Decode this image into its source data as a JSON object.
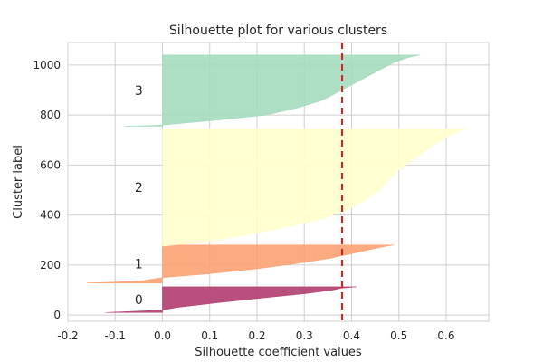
{
  "chart_data": {
    "type": "area",
    "title": "Silhouette plot for various clusters",
    "xlabel": "Silhouette coefficient values",
    "ylabel": "Cluster label",
    "xlim": [
      -0.2,
      0.69
    ],
    "ylim": [
      -25,
      1090
    ],
    "x_ticks": [
      "-0.2",
      "-0.1",
      "0.0",
      "0.1",
      "0.2",
      "0.3",
      "0.4",
      "0.5",
      "0.6"
    ],
    "y_ticks": [
      "0",
      "200",
      "400",
      "600",
      "800",
      "1000"
    ],
    "grid": true,
    "mean_silhouette_line": {
      "x": 0.38,
      "color": "#e31a1c",
      "style": "dashed"
    },
    "clusters": [
      {
        "label": "0",
        "y_start": 10,
        "y_end": 113,
        "color": "#b03c6e",
        "profile": [
          [
            10,
            -0.12
          ],
          [
            20,
            0.0
          ],
          [
            30,
            0.03
          ],
          [
            50,
            0.12
          ],
          [
            70,
            0.22
          ],
          [
            85,
            0.3
          ],
          [
            100,
            0.36
          ],
          [
            108,
            0.38
          ],
          [
            113,
            0.41
          ]
        ]
      },
      {
        "label": "1",
        "y_start": 128,
        "y_end": 280,
        "color": "#fca172",
        "profile": [
          [
            128,
            -0.16
          ],
          [
            135,
            -0.05
          ],
          [
            150,
            0.0
          ],
          [
            165,
            0.1
          ],
          [
            185,
            0.2
          ],
          [
            205,
            0.28
          ],
          [
            225,
            0.35
          ],
          [
            245,
            0.4
          ],
          [
            262,
            0.44
          ],
          [
            274,
            0.47
          ],
          [
            280,
            0.49
          ]
        ]
      },
      {
        "label": "2",
        "y_start": 275,
        "y_end": 745,
        "color": "#ffffcc",
        "profile": [
          [
            275,
            0.0
          ],
          [
            290,
            0.08
          ],
          [
            320,
            0.18
          ],
          [
            350,
            0.26
          ],
          [
            380,
            0.33
          ],
          [
            420,
            0.39
          ],
          [
            460,
            0.43
          ],
          [
            500,
            0.46
          ],
          [
            540,
            0.48
          ],
          [
            580,
            0.5
          ],
          [
            620,
            0.53
          ],
          [
            660,
            0.56
          ],
          [
            700,
            0.59
          ],
          [
            730,
            0.62
          ],
          [
            745,
            0.645
          ]
        ]
      },
      {
        "label": "3",
        "y_start": 755,
        "y_end": 1040,
        "color": "#a3dbbc",
        "profile": [
          [
            755,
            -0.08
          ],
          [
            760,
            0.0
          ],
          [
            780,
            0.12
          ],
          [
            800,
            0.22
          ],
          [
            830,
            0.29
          ],
          [
            860,
            0.34
          ],
          [
            900,
            0.38
          ],
          [
            940,
            0.42
          ],
          [
            980,
            0.46
          ],
          [
            1010,
            0.49
          ],
          [
            1030,
            0.52
          ],
          [
            1040,
            0.545
          ]
        ]
      }
    ]
  }
}
